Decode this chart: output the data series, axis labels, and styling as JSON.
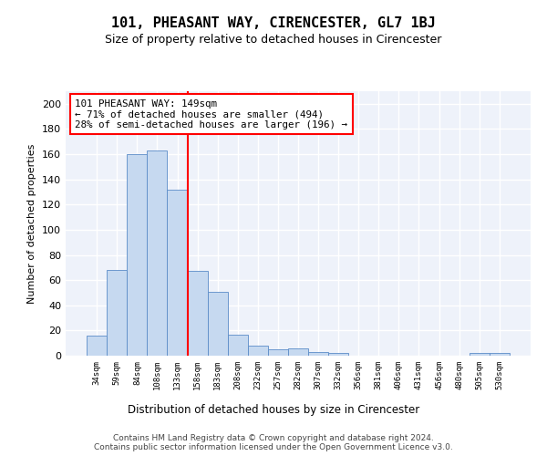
{
  "title": "101, PHEASANT WAY, CIRENCESTER, GL7 1BJ",
  "subtitle": "Size of property relative to detached houses in Cirencester",
  "xlabel": "Distribution of detached houses by size in Cirencester",
  "ylabel": "Number of detached properties",
  "bar_labels": [
    "34sqm",
    "59sqm",
    "84sqm",
    "108sqm",
    "133sqm",
    "158sqm",
    "183sqm",
    "208sqm",
    "232sqm",
    "257sqm",
    "282sqm",
    "307sqm",
    "332sqm",
    "356sqm",
    "381sqm",
    "406sqm",
    "431sqm",
    "456sqm",
    "480sqm",
    "505sqm",
    "530sqm"
  ],
  "bar_values": [
    16,
    68,
    160,
    163,
    132,
    67,
    51,
    17,
    8,
    5,
    6,
    3,
    2,
    0,
    0,
    0,
    0,
    0,
    0,
    2,
    2
  ],
  "bar_color": "#c6d9f0",
  "bar_edge_color": "#5b8cc8",
  "ylim": [
    0,
    210
  ],
  "yticks": [
    0,
    20,
    40,
    60,
    80,
    100,
    120,
    140,
    160,
    180,
    200
  ],
  "annotation_box_text": "101 PHEASANT WAY: 149sqm\n← 71% of detached houses are smaller (494)\n28% of semi-detached houses are larger (196) →",
  "property_line_x": 4.5,
  "background_color": "#eef2fa",
  "grid_color": "#ffffff",
  "footer_line1": "Contains HM Land Registry data © Crown copyright and database right 2024.",
  "footer_line2": "Contains public sector information licensed under the Open Government Licence v3.0."
}
